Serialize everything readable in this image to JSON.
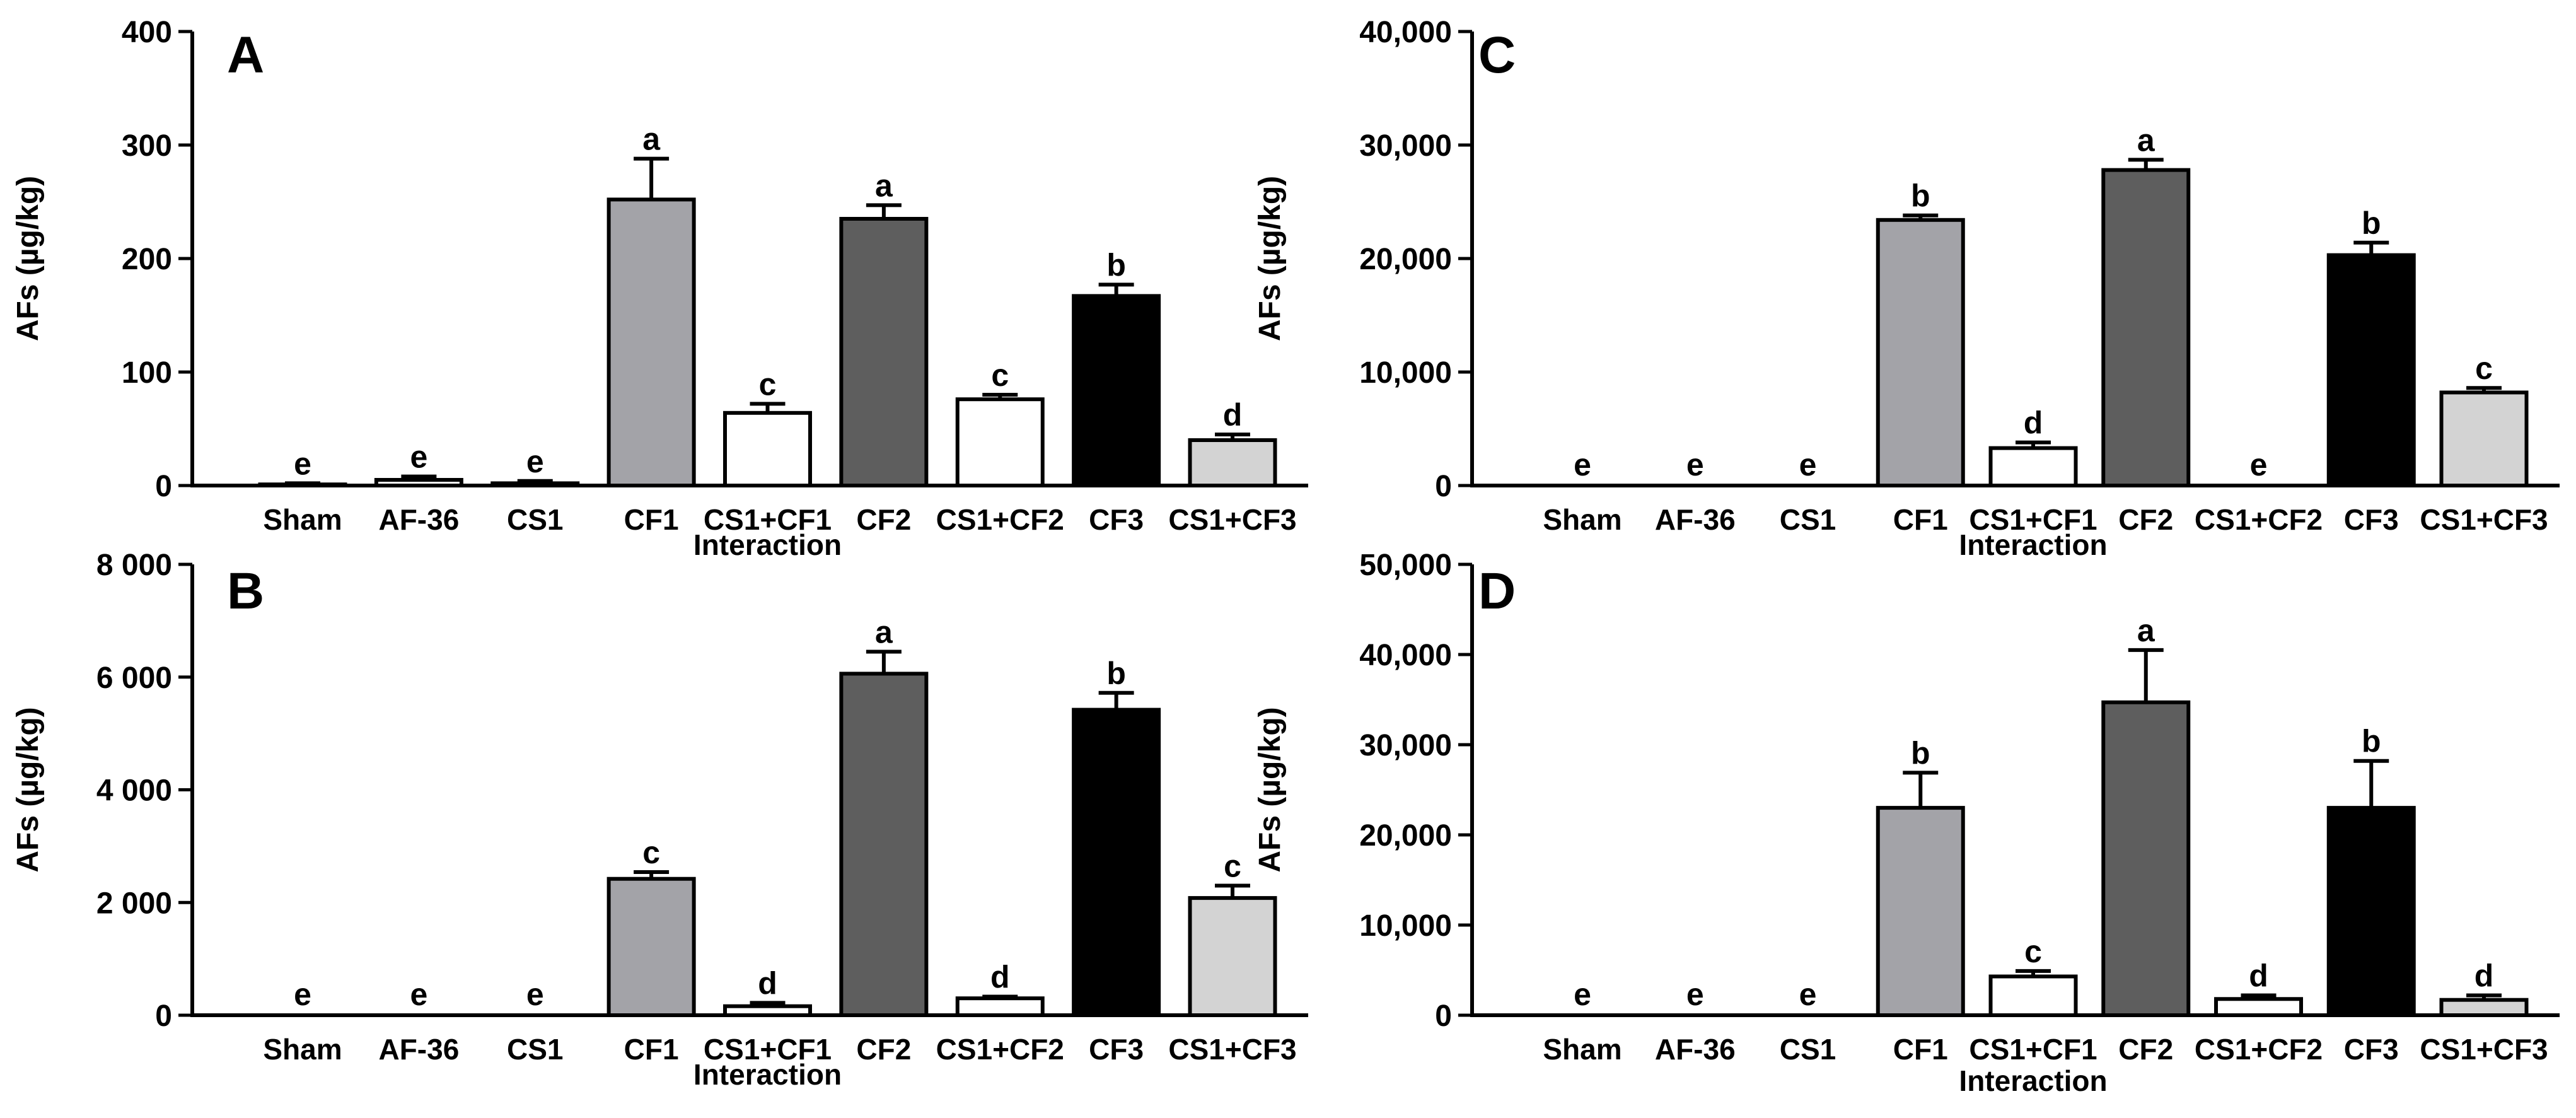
{
  "chart_data": [
    {
      "panel": "A",
      "type": "bar",
      "title": "A",
      "xlabel": "Interaction",
      "ylabel": "AFs (µg/kg)",
      "ylim": [
        0,
        400
      ],
      "yticks": [
        0,
        100,
        200,
        300,
        400
      ],
      "ytick_labels": [
        "0",
        "100",
        "200",
        "300",
        "400"
      ],
      "categories": [
        "Sham",
        "AF-36",
        "CS1",
        "CF1",
        "CS1+CF1",
        "CF2",
        "CS1+CF2",
        "CF3",
        "CS1+CF3"
      ],
      "values": [
        1,
        5,
        2,
        252,
        64,
        235,
        76,
        167,
        40
      ],
      "errors": [
        1,
        3,
        2,
        36,
        8,
        12,
        4,
        10,
        5
      ],
      "letters": [
        "e",
        "e",
        "e",
        "a",
        "c",
        "a",
        "c",
        "b",
        "d"
      ],
      "colors": [
        "#ffffff",
        "#ffffff",
        "#ffffff",
        "#a3a3a8",
        "#ffffff",
        "#5e5e5e",
        "#ffffff",
        "#000000",
        "#d3d3d3"
      ]
    },
    {
      "panel": "B",
      "type": "bar",
      "title": "B",
      "xlabel": "Interaction",
      "ylabel": "AFs (µg/kg)",
      "ylim": [
        0,
        8000
      ],
      "yticks": [
        0,
        2000,
        4000,
        6000,
        8000
      ],
      "ytick_labels": [
        "0",
        "2 000",
        "4 000",
        "6 000",
        "8 000"
      ],
      "categories": [
        "Sham",
        "AF-36",
        "CS1",
        "CF1",
        "CS1+CF1",
        "CF2",
        "CS1+CF2",
        "CF3",
        "CS1+CF3"
      ],
      "values": [
        0,
        0,
        0,
        2420,
        160,
        6060,
        300,
        5420,
        2080
      ],
      "errors": [
        0,
        0,
        0,
        120,
        60,
        390,
        30,
        300,
        220
      ],
      "letters": [
        "e",
        "e",
        "e",
        "c",
        "d",
        "a",
        "d",
        "b",
        "c"
      ],
      "colors": [
        "#ffffff",
        "#ffffff",
        "#ffffff",
        "#a3a3a8",
        "#ffffff",
        "#5e5e5e",
        "#ffffff",
        "#000000",
        "#d3d3d3"
      ]
    },
    {
      "panel": "C",
      "type": "bar",
      "title": "C",
      "xlabel": "Interaction",
      "ylabel": "AFs (µg/kg)",
      "ylim": [
        0,
        40000
      ],
      "yticks": [
        0,
        10000,
        20000,
        30000,
        40000
      ],
      "ytick_labels": [
        "0",
        "10,000",
        "20,000",
        "30,000",
        "40,000"
      ],
      "categories": [
        "Sham",
        "AF-36",
        "CS1",
        "CF1",
        "CS1+CF1",
        "CF2",
        "CS1+CF2",
        "CF3",
        "CS1+CF3"
      ],
      "values": [
        0,
        0,
        0,
        23400,
        3300,
        27800,
        0,
        20300,
        8200
      ],
      "errors": [
        0,
        0,
        0,
        400,
        500,
        900,
        0,
        1100,
        400
      ],
      "letters": [
        "e",
        "e",
        "e",
        "b",
        "d",
        "a",
        "e",
        "b",
        "c"
      ],
      "colors": [
        "#ffffff",
        "#ffffff",
        "#ffffff",
        "#a3a3a8",
        "#ffffff",
        "#5e5e5e",
        "#ffffff",
        "#000000",
        "#d3d3d3"
      ]
    },
    {
      "panel": "D",
      "type": "bar",
      "title": "D",
      "xlabel": "Interaction",
      "ylabel": "AFs (µg/kg)",
      "ylim": [
        0,
        50000
      ],
      "yticks": [
        0,
        10000,
        20000,
        30000,
        40000,
        50000
      ],
      "ytick_labels": [
        "0",
        "10,000",
        "20,000",
        "30,000",
        "40,000",
        "50,000"
      ],
      "categories": [
        "Sham",
        "AF-36",
        "CS1",
        "CF1",
        "CS1+CF1",
        "CF2",
        "CS1+CF2",
        "CF3",
        "CS1+CF3"
      ],
      "values": [
        0,
        0,
        0,
        23000,
        4300,
        34700,
        1800,
        23000,
        1700
      ],
      "errors": [
        0,
        0,
        0,
        3900,
        600,
        5800,
        400,
        5200,
        500
      ],
      "letters": [
        "e",
        "e",
        "e",
        "b",
        "c",
        "a",
        "d",
        "b",
        "d"
      ],
      "colors": [
        "#ffffff",
        "#ffffff",
        "#ffffff",
        "#a3a3a8",
        "#ffffff",
        "#5e5e5e",
        "#ffffff",
        "#000000",
        "#d3d3d3"
      ]
    }
  ]
}
